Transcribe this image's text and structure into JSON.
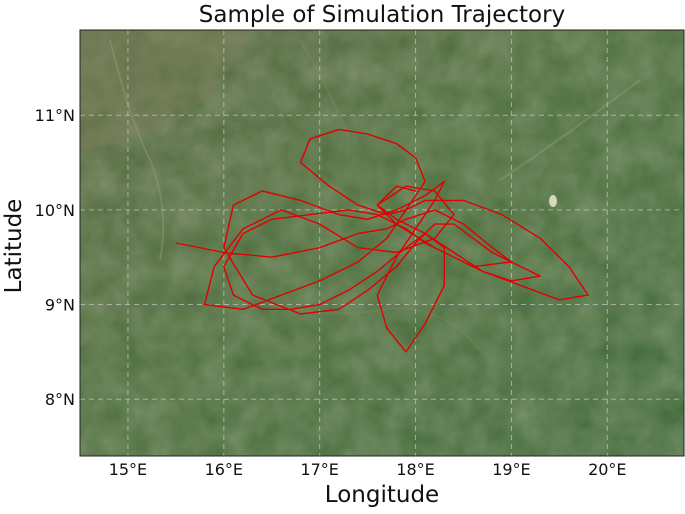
{
  "figure": {
    "title": "Sample of Simulation Trajectory",
    "xlabel": "Longitude",
    "ylabel": "Latitude"
  },
  "chart_data": {
    "type": "line",
    "title": "Sample of Simulation Trajectory",
    "xlabel": "Longitude",
    "ylabel": "Latitude",
    "xlim": [
      14.5,
      20.8
    ],
    "ylim": [
      7.4,
      11.9
    ],
    "x_ticks": [
      15,
      16,
      17,
      18,
      19,
      20
    ],
    "x_tick_labels": [
      "15°E",
      "16°E",
      "17°E",
      "18°E",
      "19°E",
      "20°E"
    ],
    "y_ticks": [
      8,
      9,
      10,
      11
    ],
    "y_tick_labels": [
      "8°N",
      "9°N",
      "10°N",
      "11°N"
    ],
    "grid": true,
    "basemap": "satellite imagery",
    "series": [
      {
        "color": "#e00000",
        "x": [
          15.5,
          16.0,
          16.5,
          17.0,
          17.4,
          17.7,
          17.9,
          18.2,
          18.5,
          18.8,
          19.0,
          18.6,
          18.2,
          17.8,
          17.6,
          17.9,
          18.2,
          18.4,
          18.2,
          17.8,
          17.4,
          17.0,
          16.6,
          16.2,
          15.9,
          15.8,
          16.2,
          16.6,
          17.0,
          17.4,
          17.7,
          17.9,
          18.1,
          18.0,
          17.8,
          17.5,
          17.2,
          16.9,
          16.8,
          17.1,
          17.4,
          17.7,
          17.9,
          18.1,
          18.5,
          18.9,
          19.3,
          19.6,
          19.8,
          19.5,
          19.1,
          18.7,
          18.4,
          18.1,
          17.9,
          17.6,
          17.3,
          16.9,
          16.5,
          16.2,
          16.0,
          16.1,
          16.4,
          16.7,
          17.0,
          17.3,
          17.6,
          17.9,
          18.1,
          18.3,
          18.3,
          18.1,
          17.9,
          17.7,
          17.6,
          17.8,
          18.0,
          18.2,
          18.3,
          18.1,
          17.8,
          17.5,
          17.2,
          16.8,
          16.4,
          16.1,
          16.0,
          16.3,
          16.8,
          17.2,
          17.5,
          17.8,
          18.0,
          18.2,
          18.4,
          18.6,
          18.8,
          19.1,
          19.3,
          19.0,
          18.7,
          18.4,
          18.1,
          17.8,
          17.6,
          17.8,
          18.0
        ],
        "y": [
          9.65,
          9.55,
          9.5,
          9.6,
          9.75,
          9.8,
          9.9,
          10.0,
          9.85,
          9.6,
          9.45,
          9.4,
          9.6,
          9.85,
          10.05,
          10.25,
          10.2,
          9.95,
          9.7,
          9.55,
          9.6,
          9.85,
          10.0,
          9.8,
          9.4,
          9.0,
          8.95,
          9.1,
          9.25,
          9.45,
          9.7,
          10.0,
          10.3,
          10.55,
          10.7,
          10.8,
          10.85,
          10.75,
          10.5,
          10.25,
          10.05,
          9.95,
          10.0,
          10.1,
          10.1,
          9.95,
          9.7,
          9.4,
          9.1,
          9.05,
          9.2,
          9.35,
          9.5,
          9.65,
          9.8,
          9.95,
          10.0,
          9.95,
          9.9,
          9.75,
          9.4,
          9.1,
          8.95,
          8.95,
          9.0,
          9.15,
          9.35,
          9.6,
          9.75,
          9.6,
          9.2,
          8.8,
          8.5,
          8.75,
          9.1,
          9.5,
          9.8,
          10.1,
          10.3,
          10.15,
          10.0,
          9.9,
          9.95,
          10.1,
          10.2,
          10.05,
          9.6,
          9.1,
          8.9,
          8.95,
          9.15,
          9.4,
          9.65,
          9.85,
          9.85,
          9.7,
          9.55,
          9.4,
          9.3,
          9.25,
          9.35,
          9.55,
          9.75,
          9.9,
          10.05,
          10.25,
          10.2
        ]
      }
    ]
  }
}
